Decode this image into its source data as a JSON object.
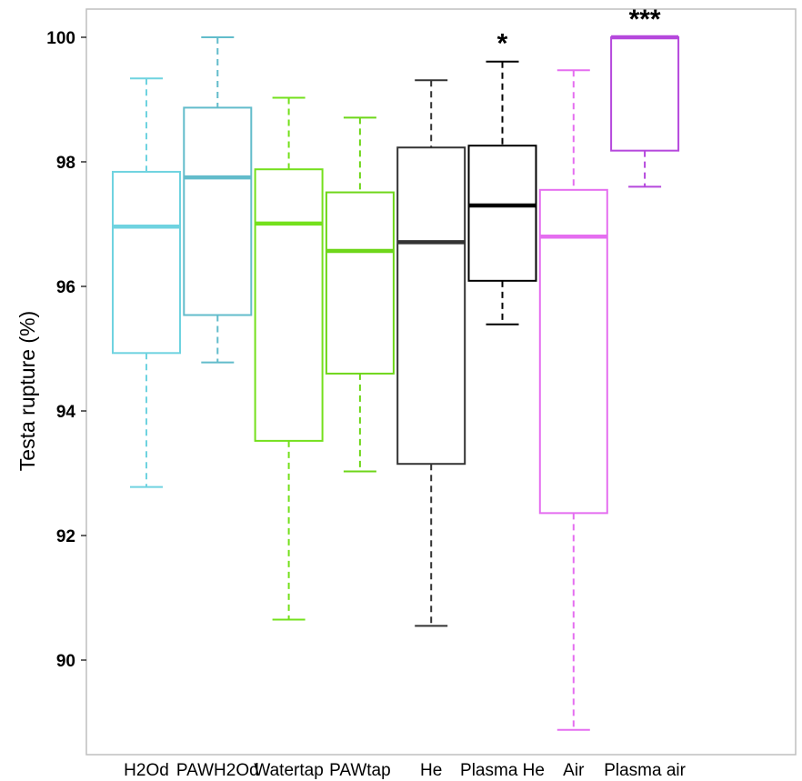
{
  "chart_data": {
    "type": "box",
    "title": "",
    "xlabel": "",
    "ylabel": "Testa rupture (%)",
    "ylim": [
      88.5,
      100.5
    ],
    "yticks": [
      90,
      92,
      94,
      96,
      98,
      100
    ],
    "grid": false,
    "legend": "none",
    "categories": [
      "H2Od",
      "PAWH2Od",
      "Watertap",
      "PAWtap",
      "He",
      "Plasma He",
      "Air",
      "Plasma air"
    ],
    "boxes": [
      {
        "category": "H2Od",
        "color": "#6fd3e0",
        "min": 92.78,
        "q1": 94.93,
        "median": 96.96,
        "q3": 97.84,
        "max": 99.34,
        "significance": ""
      },
      {
        "category": "PAWH2Od",
        "color": "#62bccb",
        "min": 94.78,
        "q1": 95.54,
        "median": 97.75,
        "q3": 98.87,
        "max": 100.0,
        "significance": ""
      },
      {
        "category": "Watertap",
        "color": "#74e01c",
        "min": 90.65,
        "q1": 93.52,
        "median": 97.01,
        "q3": 97.88,
        "max": 99.03,
        "significance": ""
      },
      {
        "category": "PAWtap",
        "color": "#6ed619",
        "min": 93.03,
        "q1": 94.6,
        "median": 96.57,
        "q3": 97.51,
        "max": 98.71,
        "significance": ""
      },
      {
        "category": "He",
        "color": "#333333",
        "min": 90.55,
        "q1": 93.15,
        "median": 96.71,
        "q3": 98.23,
        "max": 99.31,
        "significance": ""
      },
      {
        "category": "Plasma He",
        "color": "#000000",
        "min": 95.39,
        "q1": 96.09,
        "median": 97.3,
        "q3": 98.26,
        "max": 99.61,
        "significance": "*"
      },
      {
        "category": "Air",
        "color": "#e56ef0",
        "min": 88.88,
        "q1": 92.36,
        "median": 96.8,
        "q3": 97.55,
        "max": 99.47,
        "significance": ""
      },
      {
        "category": "Plasma air",
        "color": "#b548dc",
        "min": 97.6,
        "q1": 98.18,
        "median": 100.0,
        "q3": 100.0,
        "max": 100.0,
        "significance": "***"
      }
    ]
  }
}
